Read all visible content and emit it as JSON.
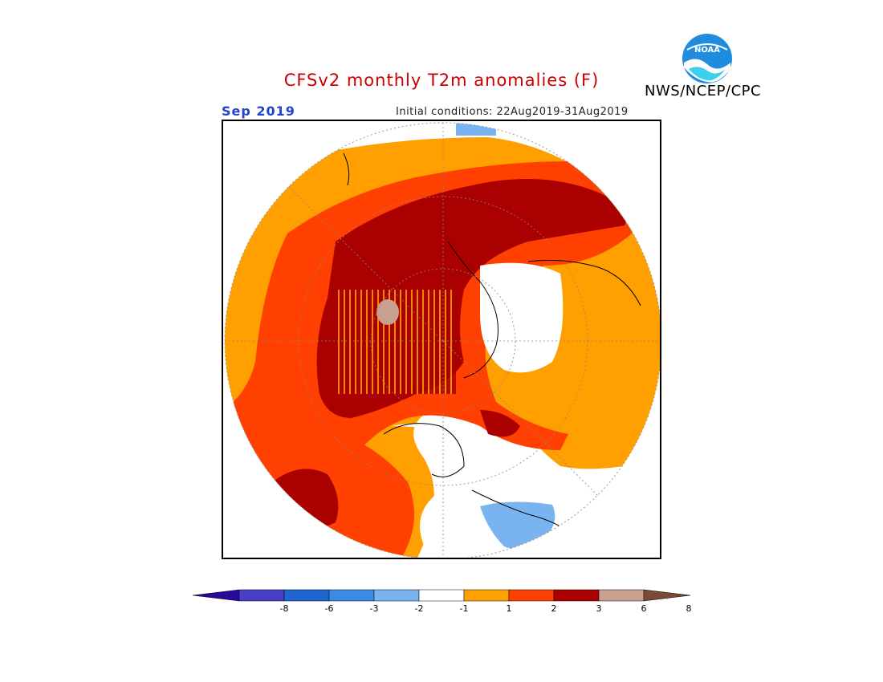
{
  "header": {
    "title": "CFSv2 monthly T2m anomalies (F)",
    "title_color": "#cc0000",
    "month": "Sep 2019",
    "month_color": "#2244cc",
    "initial_conditions": "Initial conditions: 22Aug2019-31Aug2019",
    "agency": "NWS/NCEP/CPC",
    "logo_text": "NOAA"
  },
  "map": {
    "projection": "north polar stereographic",
    "variable": "2m temperature anomaly",
    "units": "F",
    "dominant_signal": "warm anomalies over most of the Arctic; cool pockets over parts of Canada"
  },
  "colorbar": {
    "tick_labels": [
      "-8",
      "-6",
      "-3",
      "-2",
      "-1",
      "1",
      "2",
      "3",
      "6",
      "8"
    ],
    "bins": [
      {
        "color": "#2a0a9a"
      },
      {
        "color": "#4a3dc8"
      },
      {
        "color": "#1e66d0"
      },
      {
        "color": "#3a8ae8"
      },
      {
        "color": "#7ab4f0"
      },
      {
        "color": "#ffffff"
      },
      {
        "color": "#ffa000"
      },
      {
        "color": "#ff4000"
      },
      {
        "color": "#aa0000"
      },
      {
        "color": "#c8a090"
      },
      {
        "color": "#7a4a38"
      }
    ]
  }
}
